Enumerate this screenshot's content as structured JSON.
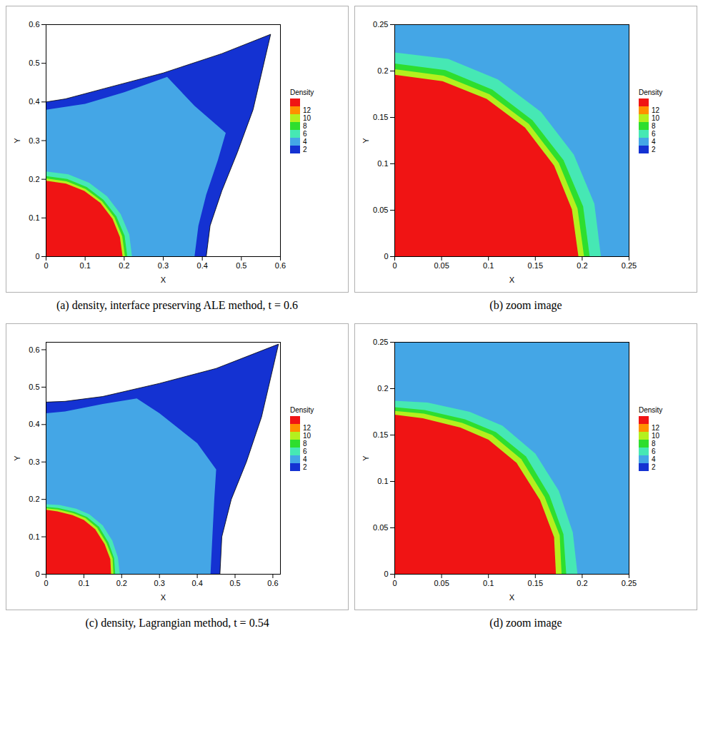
{
  "chart_data": [
    {
      "type": "contour",
      "title": "(a) density, interface preserving ALE method, t = 0.6",
      "x_label": "X",
      "y_label": "Y",
      "xlim": [
        0,
        0.6
      ],
      "ylim": [
        0,
        0.6
      ],
      "xticks": [
        0,
        0.1,
        0.2,
        0.3,
        0.4,
        0.5,
        0.6
      ],
      "yticks": [
        0,
        0.1,
        0.2,
        0.3,
        0.4,
        0.5,
        0.6
      ],
      "colorbar": {
        "title": "Density",
        "ticks": [
          12,
          10,
          8,
          6,
          4,
          2
        ],
        "colors": [
          "#ff9000",
          "#b4f01e",
          "#2ede2e",
          "#46e8b4",
          "#44a6e6",
          "#1432d2"
        ],
        "over_color": "#f01414"
      },
      "regions": [
        {
          "density": 2,
          "points": [
            [
              0,
              0
            ],
            [
              0.41,
              0
            ],
            [
              0.42,
              0.08
            ],
            [
              0.45,
              0.17
            ],
            [
              0.49,
              0.27
            ],
            [
              0.53,
              0.38
            ],
            [
              0.575,
              0.575
            ],
            [
              0.45,
              0.525
            ],
            [
              0.3,
              0.475
            ],
            [
              0.15,
              0.435
            ],
            [
              0.05,
              0.408
            ],
            [
              0,
              0.4
            ]
          ]
        },
        {
          "density": 4,
          "points": [
            [
              0,
              0
            ],
            [
              0.38,
              0
            ],
            [
              0.39,
              0.08
            ],
            [
              0.41,
              0.16
            ],
            [
              0.44,
              0.25
            ],
            [
              0.46,
              0.32
            ],
            [
              0.38,
              0.39
            ],
            [
              0.31,
              0.465
            ],
            [
              0.2,
              0.425
            ],
            [
              0.1,
              0.395
            ],
            [
              0,
              0.38
            ]
          ]
        },
        {
          "density": 6,
          "points": [
            [
              0,
              0
            ],
            [
              0.22,
              0
            ],
            [
              0.213,
              0.057
            ],
            [
              0.191,
              0.11
            ],
            [
              0.156,
              0.156
            ],
            [
              0.11,
              0.191
            ],
            [
              0.057,
              0.213
            ],
            [
              0,
              0.22
            ]
          ]
        },
        {
          "density": 8,
          "points": [
            [
              0,
              0
            ],
            [
              0.208,
              0
            ],
            [
              0.201,
              0.054
            ],
            [
              0.18,
              0.104
            ],
            [
              0.147,
              0.147
            ],
            [
              0.104,
              0.18
            ],
            [
              0.054,
              0.201
            ],
            [
              0,
              0.208
            ]
          ]
        },
        {
          "density": 10,
          "points": [
            [
              0,
              0
            ],
            [
              0.202,
              0
            ],
            [
              0.195,
              0.052
            ],
            [
              0.175,
              0.101
            ],
            [
              0.143,
              0.143
            ],
            [
              0.101,
              0.175
            ],
            [
              0.052,
              0.195
            ],
            [
              0,
              0.202
            ]
          ]
        },
        {
          "density": 13,
          "points": [
            [
              0,
              0
            ],
            [
              0.196,
              0
            ],
            [
              0.189,
              0.051
            ],
            [
              0.17,
              0.098
            ],
            [
              0.139,
              0.139
            ],
            [
              0.098,
              0.17
            ],
            [
              0.051,
              0.189
            ],
            [
              0,
              0.196
            ]
          ]
        }
      ]
    },
    {
      "type": "contour",
      "title": "(b) zoom image",
      "x_label": "X",
      "y_label": "Y",
      "xlim": [
        0,
        0.25
      ],
      "ylim": [
        0,
        0.25
      ],
      "xticks": [
        0,
        0.05,
        0.1,
        0.15,
        0.2,
        0.25
      ],
      "yticks": [
        0,
        0.05,
        0.1,
        0.15,
        0.2,
        0.25
      ],
      "colorbar": {
        "title": "Density",
        "ticks": [
          12,
          10,
          8,
          6,
          4,
          2
        ],
        "colors": [
          "#ff9000",
          "#b4f01e",
          "#2ede2e",
          "#46e8b4",
          "#44a6e6",
          "#1432d2"
        ],
        "over_color": "#f01414"
      },
      "regions": [
        {
          "density": 4,
          "points": [
            [
              0,
              0
            ],
            [
              0.25,
              0
            ],
            [
              0.25,
              0.25
            ],
            [
              0,
              0.25
            ]
          ]
        },
        {
          "density": 6,
          "points": [
            [
              0,
              0
            ],
            [
              0.22,
              0
            ],
            [
              0.213,
              0.057
            ],
            [
              0.191,
              0.11
            ],
            [
              0.156,
              0.156
            ],
            [
              0.11,
              0.191
            ],
            [
              0.057,
              0.213
            ],
            [
              0,
              0.22
            ]
          ]
        },
        {
          "density": 8,
          "points": [
            [
              0,
              0
            ],
            [
              0.208,
              0
            ],
            [
              0.201,
              0.054
            ],
            [
              0.18,
              0.104
            ],
            [
              0.147,
              0.147
            ],
            [
              0.104,
              0.18
            ],
            [
              0.054,
              0.201
            ],
            [
              0,
              0.208
            ]
          ]
        },
        {
          "density": 10,
          "points": [
            [
              0,
              0
            ],
            [
              0.202,
              0
            ],
            [
              0.195,
              0.052
            ],
            [
              0.175,
              0.101
            ],
            [
              0.143,
              0.143
            ],
            [
              0.101,
              0.175
            ],
            [
              0.052,
              0.195
            ],
            [
              0,
              0.202
            ]
          ]
        },
        {
          "density": 13,
          "points": [
            [
              0,
              0
            ],
            [
              0.196,
              0
            ],
            [
              0.189,
              0.051
            ],
            [
              0.17,
              0.098
            ],
            [
              0.139,
              0.139
            ],
            [
              0.098,
              0.17
            ],
            [
              0.051,
              0.189
            ],
            [
              0,
              0.196
            ]
          ]
        }
      ]
    },
    {
      "type": "contour",
      "title": "(c) density, Lagrangian method, t = 0.54",
      "x_label": "X",
      "y_label": "Y",
      "xlim": [
        0,
        0.62
      ],
      "ylim": [
        0,
        0.62
      ],
      "xticks": [
        0,
        0.1,
        0.2,
        0.3,
        0.4,
        0.5,
        0.6
      ],
      "yticks": [
        0,
        0.1,
        0.2,
        0.3,
        0.4,
        0.5,
        0.6
      ],
      "colorbar": {
        "title": "Density",
        "ticks": [
          12,
          10,
          8,
          6,
          4,
          2
        ],
        "colors": [
          "#ff9000",
          "#b4f01e",
          "#2ede2e",
          "#46e8b4",
          "#44a6e6",
          "#1432d2"
        ],
        "over_color": "#f01414"
      },
      "regions": [
        {
          "density": 2,
          "points": [
            [
              0,
              0
            ],
            [
              0.46,
              0
            ],
            [
              0.465,
              0.1
            ],
            [
              0.49,
              0.2
            ],
            [
              0.53,
              0.3
            ],
            [
              0.57,
              0.42
            ],
            [
              0.615,
              0.615
            ],
            [
              0.45,
              0.55
            ],
            [
              0.3,
              0.51
            ],
            [
              0.15,
              0.475
            ],
            [
              0.05,
              0.462
            ],
            [
              0,
              0.46
            ]
          ]
        },
        {
          "density": 4,
          "points": [
            [
              0,
              0
            ],
            [
              0.435,
              0
            ],
            [
              0.44,
              0.1
            ],
            [
              0.445,
              0.2
            ],
            [
              0.45,
              0.28
            ],
            [
              0.4,
              0.35
            ],
            [
              0.3,
              0.43
            ],
            [
              0.24,
              0.47
            ],
            [
              0.15,
              0.455
            ],
            [
              0.05,
              0.435
            ],
            [
              0,
              0.43
            ]
          ]
        },
        {
          "density": 6,
          "points": [
            [
              0,
              0
            ],
            [
              0.195,
              0
            ],
            [
              0.19,
              0.045
            ],
            [
              0.175,
              0.09
            ],
            [
              0.15,
              0.13
            ],
            [
              0.115,
              0.16
            ],
            [
              0.08,
              0.175
            ],
            [
              0.035,
              0.185
            ],
            [
              0,
              0.187
            ]
          ]
        },
        {
          "density": 8,
          "points": [
            [
              0,
              0
            ],
            [
              0.183,
              0
            ],
            [
              0.18,
              0.043
            ],
            [
              0.165,
              0.085
            ],
            [
              0.14,
              0.127
            ],
            [
              0.108,
              0.153
            ],
            [
              0.075,
              0.167
            ],
            [
              0.032,
              0.177
            ],
            [
              0,
              0.18
            ]
          ]
        },
        {
          "density": 10,
          "points": [
            [
              0,
              0
            ],
            [
              0.178,
              0
            ],
            [
              0.176,
              0.042
            ],
            [
              0.16,
              0.083
            ],
            [
              0.135,
              0.124
            ],
            [
              0.104,
              0.15
            ],
            [
              0.072,
              0.163
            ],
            [
              0.031,
              0.173
            ],
            [
              0,
              0.176
            ]
          ]
        },
        {
          "density": 13,
          "points": [
            [
              0,
              0
            ],
            [
              0.172,
              0
            ],
            [
              0.17,
              0.04
            ],
            [
              0.155,
              0.08
            ],
            [
              0.13,
              0.12
            ],
            [
              0.1,
              0.145
            ],
            [
              0.07,
              0.158
            ],
            [
              0.03,
              0.168
            ],
            [
              0,
              0.172
            ]
          ]
        }
      ]
    },
    {
      "type": "contour",
      "title": "(d) zoom image",
      "x_label": "X",
      "y_label": "Y",
      "xlim": [
        0,
        0.25
      ],
      "ylim": [
        0,
        0.25
      ],
      "xticks": [
        0,
        0.05,
        0.1,
        0.15,
        0.2,
        0.25
      ],
      "yticks": [
        0,
        0.05,
        0.1,
        0.15,
        0.2,
        0.25
      ],
      "colorbar": {
        "title": "Density",
        "ticks": [
          12,
          10,
          8,
          6,
          4,
          2
        ],
        "colors": [
          "#ff9000",
          "#b4f01e",
          "#2ede2e",
          "#46e8b4",
          "#44a6e6",
          "#1432d2"
        ],
        "over_color": "#f01414"
      },
      "regions": [
        {
          "density": 4,
          "points": [
            [
              0,
              0
            ],
            [
              0.25,
              0
            ],
            [
              0.25,
              0.25
            ],
            [
              0,
              0.25
            ]
          ]
        },
        {
          "density": 6,
          "points": [
            [
              0,
              0
            ],
            [
              0.195,
              0
            ],
            [
              0.19,
              0.045
            ],
            [
              0.175,
              0.09
            ],
            [
              0.15,
              0.13
            ],
            [
              0.115,
              0.16
            ],
            [
              0.08,
              0.175
            ],
            [
              0.035,
              0.185
            ],
            [
              0,
              0.187
            ]
          ]
        },
        {
          "density": 8,
          "points": [
            [
              0,
              0
            ],
            [
              0.183,
              0
            ],
            [
              0.18,
              0.043
            ],
            [
              0.165,
              0.085
            ],
            [
              0.14,
              0.127
            ],
            [
              0.108,
              0.153
            ],
            [
              0.075,
              0.167
            ],
            [
              0.032,
              0.177
            ],
            [
              0,
              0.18
            ]
          ]
        },
        {
          "density": 10,
          "points": [
            [
              0,
              0
            ],
            [
              0.178,
              0
            ],
            [
              0.176,
              0.042
            ],
            [
              0.16,
              0.083
            ],
            [
              0.135,
              0.124
            ],
            [
              0.104,
              0.15
            ],
            [
              0.072,
              0.163
            ],
            [
              0.031,
              0.173
            ],
            [
              0,
              0.176
            ]
          ]
        },
        {
          "density": 13,
          "points": [
            [
              0,
              0
            ],
            [
              0.172,
              0
            ],
            [
              0.17,
              0.04
            ],
            [
              0.155,
              0.08
            ],
            [
              0.13,
              0.12
            ],
            [
              0.1,
              0.145
            ],
            [
              0.07,
              0.158
            ],
            [
              0.03,
              0.168
            ],
            [
              0,
              0.172
            ]
          ]
        }
      ]
    }
  ]
}
